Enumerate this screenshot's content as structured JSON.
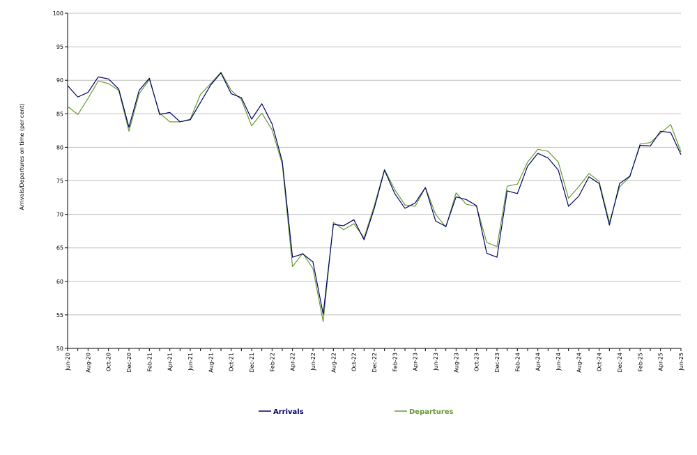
{
  "chart_data": {
    "type": "line",
    "title": "",
    "xlabel": "",
    "ylabel": "Arrivals/Departures on time (per cent)",
    "ylim": [
      50,
      100
    ],
    "yticks": [
      "50",
      "55",
      "60",
      "65",
      "70",
      "75",
      "80",
      "85",
      "90",
      "95",
      "100"
    ],
    "grid": true,
    "legend_placement": "bottom",
    "x_tick_labels": [
      "Jun-20",
      "Aug-20",
      "Oct-20",
      "Dec-20",
      "Feb-21",
      "Apr-21",
      "Jun-21",
      "Aug-21",
      "Oct-21",
      "Dec-21",
      "Feb-22",
      "Apr-22",
      "Jun-22",
      "Aug-22",
      "Oct-22",
      "Dec-22",
      "Feb-23",
      "Apr-23",
      "Jun-23",
      "Aug-23",
      "Oct-23",
      "Dec-23",
      "Feb-24",
      "Apr-24",
      "Jun-24",
      "Aug-24",
      "Oct-24",
      "Dec-24",
      "Feb-25",
      "Apr-25",
      "Jun-25"
    ],
    "x": [
      "Jun-20",
      "Jul-20",
      "Aug-20",
      "Sep-20",
      "Oct-20",
      "Nov-20",
      "Dec-20",
      "Jan-21",
      "Feb-21",
      "Mar-21",
      "Apr-21",
      "May-21",
      "Jun-21",
      "Jul-21",
      "Aug-21",
      "Sep-21",
      "Oct-21",
      "Nov-21",
      "Dec-21",
      "Jan-22",
      "Feb-22",
      "Mar-22",
      "Apr-22",
      "May-22",
      "Jun-22",
      "Jul-22",
      "Aug-22",
      "Sep-22",
      "Oct-22",
      "Nov-22",
      "Dec-22",
      "Jan-23",
      "Feb-23",
      "Mar-23",
      "Apr-23",
      "May-23",
      "Jun-23",
      "Jul-23",
      "Aug-23",
      "Sep-23",
      "Oct-23",
      "Nov-23",
      "Dec-23",
      "Jan-24",
      "Feb-24",
      "Mar-24",
      "Apr-24",
      "May-24",
      "Jun-24",
      "Jul-24",
      "Aug-24",
      "Sep-24",
      "Oct-24",
      "Nov-24",
      "Dec-24",
      "Jan-25",
      "Feb-25",
      "Mar-25",
      "Apr-25",
      "May-25",
      "Jun-25"
    ],
    "series": [
      {
        "name": "Arrivals",
        "color": "#000066",
        "values": [
          89.2,
          87.5,
          88.2,
          90.5,
          90.2,
          88.7,
          83.0,
          88.5,
          90.3,
          84.9,
          85.2,
          83.8,
          84.1,
          86.7,
          89.3,
          91.1,
          88.0,
          87.4,
          84.2,
          86.5,
          83.5,
          77.9,
          63.6,
          64.1,
          62.9,
          55.1,
          68.5,
          68.3,
          69.2,
          66.2,
          70.9,
          76.6,
          73.1,
          70.9,
          71.7,
          74.0,
          69.0,
          68.2,
          72.6,
          72.2,
          71.3,
          64.2,
          63.6,
          73.5,
          73.1,
          77.2,
          79.1,
          78.4,
          76.6,
          71.2,
          72.7,
          75.6,
          74.6,
          68.4,
          74.6,
          75.7,
          80.3,
          80.2,
          82.4,
          82.2,
          78.9
        ]
      },
      {
        "name": "Departures",
        "color": "#669933",
        "values": [
          86.1,
          84.9,
          87.3,
          89.9,
          89.5,
          88.5,
          82.4,
          88.0,
          90.1,
          85.1,
          83.8,
          83.8,
          84.2,
          87.9,
          89.5,
          91.2,
          88.5,
          87.1,
          83.2,
          85.1,
          82.6,
          77.5,
          62.2,
          64.2,
          61.9,
          54.0,
          68.8,
          67.7,
          68.6,
          66.5,
          71.3,
          76.7,
          73.7,
          71.4,
          71.2,
          74.0,
          70.0,
          68.1,
          73.2,
          71.5,
          71.2,
          65.8,
          65.2,
          74.2,
          74.5,
          77.8,
          79.7,
          79.4,
          77.8,
          72.4,
          74.1,
          76.1,
          74.9,
          68.8,
          74.1,
          75.6,
          80.5,
          80.7,
          82.1,
          83.4,
          79.3
        ]
      }
    ]
  }
}
